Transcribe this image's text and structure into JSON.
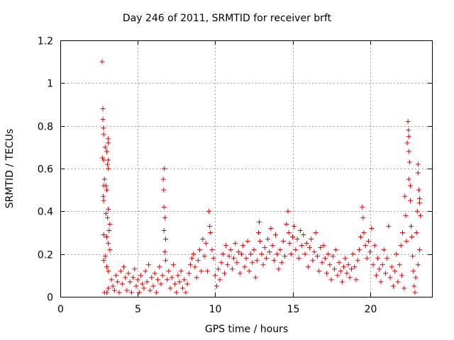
{
  "chart_data": {
    "type": "scatter",
    "title": "Day 246 of 2011, SRMTID for receiver brft",
    "xlabel": "GPS time / hours",
    "ylabel": "SRMTID / TECUs",
    "xlim": [
      0,
      24
    ],
    "ylim": [
      0,
      1.2
    ],
    "xticks": [
      0,
      5,
      10,
      15,
      20
    ],
    "yticks": [
      0,
      0.2,
      0.4,
      0.6,
      0.8,
      1,
      1.2
    ],
    "xtick_labels": [
      "0",
      "5",
      "10",
      "15",
      "20"
    ],
    "ytick_labels": [
      "0",
      "0.2",
      "0.4",
      "0.6",
      "0.8",
      "1",
      "1.2"
    ],
    "grid": true,
    "marker": "+",
    "color": "#e00000",
    "series": [
      {
        "name": "SRMTID",
        "points": [
          [
            2.7,
            1.1
          ],
          [
            2.75,
            0.88
          ],
          [
            2.75,
            0.83
          ],
          [
            2.78,
            0.79
          ],
          [
            2.8,
            0.76
          ],
          [
            2.72,
            0.65
          ],
          [
            2.8,
            0.64
          ],
          [
            2.9,
            0.7
          ],
          [
            3.0,
            0.68
          ],
          [
            3.1,
            0.74
          ],
          [
            3.1,
            0.72
          ],
          [
            3.1,
            0.64
          ],
          [
            3.05,
            0.62
          ],
          [
            3.1,
            0.6
          ],
          [
            2.85,
            0.55
          ],
          [
            2.8,
            0.52
          ],
          [
            2.95,
            0.52
          ],
          [
            3.0,
            0.5
          ],
          [
            2.78,
            0.47
          ],
          [
            2.8,
            0.45
          ],
          [
            3.1,
            0.41
          ],
          [
            2.95,
            0.39
          ],
          [
            3.05,
            0.37
          ],
          [
            3.2,
            0.34
          ],
          [
            3.15,
            0.31
          ],
          [
            2.8,
            0.29
          ],
          [
            3.0,
            0.28
          ],
          [
            3.1,
            0.25
          ],
          [
            3.2,
            0.22
          ],
          [
            2.9,
            0.19
          ],
          [
            2.8,
            0.17
          ],
          [
            3.0,
            0.14
          ],
          [
            3.1,
            0.12
          ],
          [
            2.85,
            0.02
          ],
          [
            3.0,
            0.02
          ],
          [
            3.1,
            0.04
          ],
          [
            3.3,
            0.08
          ],
          [
            3.4,
            0.05
          ],
          [
            3.5,
            0.03
          ],
          [
            3.6,
            0.1
          ],
          [
            3.7,
            0.07
          ],
          [
            3.8,
            0.02
          ],
          [
            3.9,
            0.12
          ],
          [
            4.0,
            0.06
          ],
          [
            4.1,
            0.14
          ],
          [
            4.2,
            0.09
          ],
          [
            4.3,
            0.03
          ],
          [
            4.4,
            0.11
          ],
          [
            4.5,
            0.07
          ],
          [
            4.6,
            0.02
          ],
          [
            4.7,
            0.09
          ],
          [
            4.8,
            0.13
          ],
          [
            4.9,
            0.05
          ],
          [
            5.0,
            0.08
          ],
          [
            5.1,
            0.02
          ],
          [
            5.2,
            0.1
          ],
          [
            5.3,
            0.06
          ],
          [
            5.4,
            0.04
          ],
          [
            5.5,
            0.12
          ],
          [
            5.6,
            0.07
          ],
          [
            5.7,
            0.15
          ],
          [
            5.8,
            0.03
          ],
          [
            5.9,
            0.09
          ],
          [
            6.0,
            0.05
          ],
          [
            6.1,
            0.11
          ],
          [
            6.2,
            0.02
          ],
          [
            6.3,
            0.08
          ],
          [
            6.4,
            0.14
          ],
          [
            6.5,
            0.06
          ],
          [
            6.6,
            0.1
          ],
          [
            6.72,
            0.6
          ],
          [
            6.65,
            0.55
          ],
          [
            6.68,
            0.5
          ],
          [
            6.7,
            0.42
          ],
          [
            6.75,
            0.37
          ],
          [
            6.7,
            0.31
          ],
          [
            6.8,
            0.27
          ],
          [
            6.75,
            0.21
          ],
          [
            6.8,
            0.17
          ],
          [
            6.9,
            0.08
          ],
          [
            7.0,
            0.12
          ],
          [
            7.1,
            0.04
          ],
          [
            7.2,
            0.09
          ],
          [
            7.3,
            0.15
          ],
          [
            7.4,
            0.06
          ],
          [
            7.5,
            0.02
          ],
          [
            7.6,
            0.1
          ],
          [
            7.7,
            0.07
          ],
          [
            7.8,
            0.12
          ],
          [
            7.9,
            0.04
          ],
          [
            8.0,
            0.08
          ],
          [
            8.1,
            0.02
          ],
          [
            8.2,
            0.06
          ],
          [
            8.3,
            0.11
          ],
          [
            8.4,
            0.15
          ],
          [
            8.5,
            0.18
          ],
          [
            8.6,
            0.2
          ],
          [
            8.7,
            0.14
          ],
          [
            8.8,
            0.09
          ],
          [
            8.9,
            0.17
          ],
          [
            9.0,
            0.22
          ],
          [
            9.1,
            0.12
          ],
          [
            9.2,
            0.27
          ],
          [
            9.3,
            0.19
          ],
          [
            9.4,
            0.25
          ],
          [
            9.5,
            0.12
          ],
          [
            9.6,
            0.4
          ],
          [
            9.65,
            0.33
          ],
          [
            9.7,
            0.3
          ],
          [
            9.8,
            0.22
          ],
          [
            9.9,
            0.18
          ],
          [
            10.0,
            0.1
          ],
          [
            10.1,
            0.05
          ],
          [
            10.2,
            0.13
          ],
          [
            10.3,
            0.08
          ],
          [
            10.4,
            0.16
          ],
          [
            10.5,
            0.2
          ],
          [
            10.6,
            0.11
          ],
          [
            10.7,
            0.24
          ],
          [
            10.8,
            0.15
          ],
          [
            10.9,
            0.19
          ],
          [
            11.0,
            0.22
          ],
          [
            11.1,
            0.13
          ],
          [
            11.2,
            0.18
          ],
          [
            11.3,
            0.25
          ],
          [
            11.4,
            0.16
          ],
          [
            11.5,
            0.21
          ],
          [
            11.6,
            0.11
          ],
          [
            11.7,
            0.2
          ],
          [
            11.8,
            0.24
          ],
          [
            11.9,
            0.14
          ],
          [
            12.0,
            0.18
          ],
          [
            12.1,
            0.26
          ],
          [
            12.2,
            0.12
          ],
          [
            12.3,
            0.2
          ],
          [
            12.4,
            0.16
          ],
          [
            12.5,
            0.22
          ],
          [
            12.6,
            0.09
          ],
          [
            12.7,
            0.17
          ],
          [
            12.8,
            0.3
          ],
          [
            12.85,
            0.35
          ],
          [
            12.9,
            0.26
          ],
          [
            13.0,
            0.2
          ],
          [
            13.1,
            0.15
          ],
          [
            13.2,
            0.23
          ],
          [
            13.3,
            0.18
          ],
          [
            13.4,
            0.27
          ],
          [
            13.5,
            0.21
          ],
          [
            13.6,
            0.32
          ],
          [
            13.7,
            0.24
          ],
          [
            13.8,
            0.17
          ],
          [
            13.9,
            0.29
          ],
          [
            14.0,
            0.2
          ],
          [
            14.1,
            0.13
          ],
          [
            14.2,
            0.22
          ],
          [
            14.3,
            0.16
          ],
          [
            14.4,
            0.26
          ],
          [
            14.5,
            0.19
          ],
          [
            14.6,
            0.34
          ],
          [
            14.7,
            0.4
          ],
          [
            14.75,
            0.3
          ],
          [
            14.8,
            0.25
          ],
          [
            14.9,
            0.2
          ],
          [
            15.0,
            0.28
          ],
          [
            15.1,
            0.33
          ],
          [
            15.2,
            0.22
          ],
          [
            15.3,
            0.27
          ],
          [
            15.4,
            0.18
          ],
          [
            15.5,
            0.31
          ],
          [
            15.6,
            0.24
          ],
          [
            15.7,
            0.29
          ],
          [
            15.8,
            0.2
          ],
          [
            15.9,
            0.25
          ],
          [
            16.0,
            0.14
          ],
          [
            16.1,
            0.23
          ],
          [
            16.2,
            0.27
          ],
          [
            16.3,
            0.17
          ],
          [
            16.4,
            0.21
          ],
          [
            16.5,
            0.3
          ],
          [
            16.6,
            0.19
          ],
          [
            16.7,
            0.12
          ],
          [
            16.8,
            0.23
          ],
          [
            16.9,
            0.16
          ],
          [
            17.0,
            0.24
          ],
          [
            17.1,
            0.18
          ],
          [
            17.2,
            0.11
          ],
          [
            17.3,
            0.2
          ],
          [
            17.4,
            0.15
          ],
          [
            17.5,
            0.08
          ],
          [
            17.6,
            0.19
          ],
          [
            17.7,
            0.13
          ],
          [
            17.8,
            0.22
          ],
          [
            17.9,
            0.1
          ],
          [
            18.0,
            0.16
          ],
          [
            18.1,
            0.12
          ],
          [
            18.2,
            0.07
          ],
          [
            18.3,
            0.14
          ],
          [
            18.4,
            0.18
          ],
          [
            18.5,
            0.11
          ],
          [
            18.6,
            0.15
          ],
          [
            18.7,
            0.09
          ],
          [
            18.8,
            0.13
          ],
          [
            18.9,
            0.2
          ],
          [
            19.0,
            0.14
          ],
          [
            19.1,
            0.08
          ],
          [
            19.2,
            0.17
          ],
          [
            19.3,
            0.22
          ],
          [
            19.4,
            0.28
          ],
          [
            19.5,
            0.42
          ],
          [
            19.55,
            0.37
          ],
          [
            19.6,
            0.3
          ],
          [
            19.7,
            0.24
          ],
          [
            19.8,
            0.18
          ],
          [
            19.9,
            0.26
          ],
          [
            20.0,
            0.21
          ],
          [
            20.1,
            0.32
          ],
          [
            20.2,
            0.15
          ],
          [
            20.3,
            0.24
          ],
          [
            20.4,
            0.1
          ],
          [
            20.5,
            0.18
          ],
          [
            20.6,
            0.13
          ],
          [
            20.7,
            0.07
          ],
          [
            20.8,
            0.15
          ],
          [
            20.9,
            0.22
          ],
          [
            21.0,
            0.11
          ],
          [
            21.1,
            0.18
          ],
          [
            21.2,
            0.33
          ],
          [
            21.3,
            0.09
          ],
          [
            21.4,
            0.14
          ],
          [
            21.5,
            0.05
          ],
          [
            21.6,
            0.12
          ],
          [
            21.7,
            0.2
          ],
          [
            21.8,
            0.07
          ],
          [
            21.9,
            0.15
          ],
          [
            22.0,
            0.24
          ],
          [
            22.05,
            0.1
          ],
          [
            22.1,
            0.3
          ],
          [
            22.2,
            0.04
          ],
          [
            22.25,
            0.47
          ],
          [
            22.3,
            0.38
          ],
          [
            22.35,
            0.26
          ],
          [
            22.4,
            0.72
          ],
          [
            22.45,
            0.82
          ],
          [
            22.48,
            0.78
          ],
          [
            22.5,
            0.75
          ],
          [
            22.5,
            0.68
          ],
          [
            22.55,
            0.63
          ],
          [
            22.5,
            0.55
          ],
          [
            22.6,
            0.45
          ],
          [
            22.6,
            0.52
          ],
          [
            22.65,
            0.33
          ],
          [
            22.7,
            0.28
          ],
          [
            22.75,
            0.19
          ],
          [
            22.8,
            0.12
          ],
          [
            22.85,
            0.05
          ],
          [
            22.9,
            0.02
          ],
          [
            22.95,
            0.09
          ],
          [
            23.0,
            0.3
          ],
          [
            23.05,
            0.4
          ],
          [
            23.1,
            0.62
          ],
          [
            23.1,
            0.58
          ],
          [
            23.15,
            0.5
          ],
          [
            23.2,
            0.46
          ],
          [
            23.2,
            0.44
          ],
          [
            23.25,
            0.38
          ],
          [
            23.2,
            0.22
          ],
          [
            23.1,
            0.15
          ]
        ]
      }
    ]
  }
}
